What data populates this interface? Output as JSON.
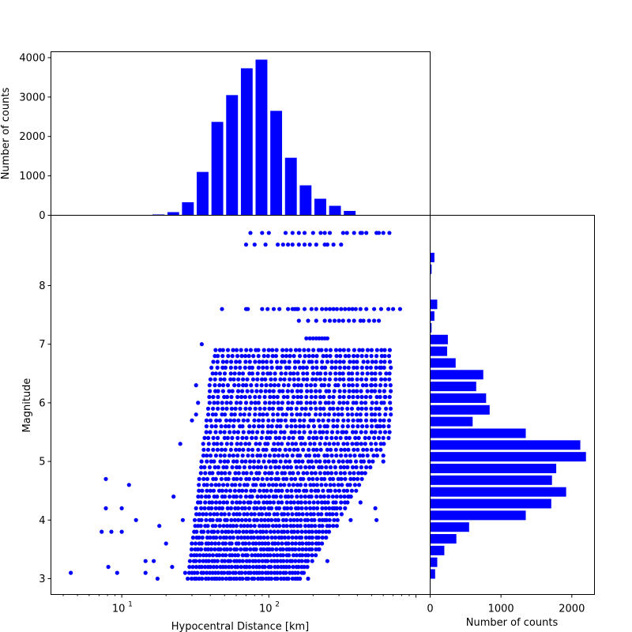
{
  "chart_data": [
    {
      "type": "bar",
      "role": "marginal-top-histogram",
      "ylabel": "Number of counts",
      "xscale": "log",
      "xlim": [
        3.3,
        1250
      ],
      "ylim": [
        0,
        4150
      ],
      "yticks": [
        0,
        1000,
        2000,
        3000,
        4000
      ],
      "color": "#0000ff",
      "bins": [
        {
          "lo": 15.8,
          "hi": 20.0,
          "count": 20
        },
        {
          "lo": 20.0,
          "hi": 25.1,
          "count": 80
        },
        {
          "lo": 25.1,
          "hi": 31.6,
          "count": 330
        },
        {
          "lo": 31.6,
          "hi": 39.8,
          "count": 1100
        },
        {
          "lo": 39.8,
          "hi": 50.1,
          "count": 2370
        },
        {
          "lo": 50.1,
          "hi": 63.1,
          "count": 3050
        },
        {
          "lo": 63.1,
          "hi": 79.4,
          "count": 3730
        },
        {
          "lo": 79.4,
          "hi": 100.0,
          "count": 3950
        },
        {
          "lo": 100.0,
          "hi": 125.9,
          "count": 2650
        },
        {
          "lo": 125.9,
          "hi": 158.5,
          "count": 1460
        },
        {
          "lo": 158.5,
          "hi": 199.5,
          "count": 760
        },
        {
          "lo": 199.5,
          "hi": 251.2,
          "count": 420
        },
        {
          "lo": 251.2,
          "hi": 316.2,
          "count": 240
        },
        {
          "lo": 316.2,
          "hi": 398.1,
          "count": 110
        }
      ]
    },
    {
      "type": "scatter",
      "role": "main",
      "xlabel": "Hypocentral Distance [km]",
      "ylabel": "Magnitude",
      "xscale": "log",
      "xlim": [
        3.3,
        1250
      ],
      "ylim": [
        2.73,
        9.2
      ],
      "xticks": [
        {
          "value": 10,
          "label": "10",
          "sup": "1"
        },
        {
          "value": 100,
          "label": "10",
          "sup": "2"
        }
      ],
      "yticks": [
        3,
        4,
        5,
        6,
        7,
        8
      ],
      "color": "#0000ff",
      "dense_band": {
        "mag_min": 3.0,
        "mag_max": 6.9,
        "mag_step": 0.1,
        "dist_lo_at_min": 28,
        "dist_lo_at_max": 42,
        "dist_hi_at_min": 170,
        "dist_hi_at_max": 700
      },
      "points": [
        [
          4.5,
          3.1
        ],
        [
          8.1,
          3.2
        ],
        [
          7.8,
          4.7
        ],
        [
          7.8,
          4.2
        ],
        [
          8.5,
          3.8
        ],
        [
          7.3,
          3.8
        ],
        [
          9.3,
          3.1
        ],
        [
          10.0,
          3.8
        ],
        [
          10.0,
          4.2
        ],
        [
          11.2,
          4.6
        ],
        [
          12.5,
          4.0
        ],
        [
          14.5,
          3.1
        ],
        [
          16.5,
          3.3
        ],
        [
          17.5,
          3.0
        ],
        [
          18.0,
          3.9
        ],
        [
          14.5,
          3.3
        ],
        [
          20.0,
          3.6
        ],
        [
          22.5,
          4.4
        ],
        [
          25.0,
          5.3
        ],
        [
          26.0,
          4.0
        ],
        [
          27.0,
          3.1
        ],
        [
          22.0,
          3.2
        ],
        [
          30.0,
          5.7
        ],
        [
          32.0,
          6.3
        ],
        [
          35.0,
          7.0
        ],
        [
          32.0,
          5.8
        ],
        [
          33.0,
          6.0
        ],
        [
          240,
          4.0
        ],
        [
          280,
          4.2
        ],
        [
          290,
          3.9
        ],
        [
          250,
          3.3
        ],
        [
          220,
          3.5
        ],
        [
          185,
          3.0
        ],
        [
          360,
          4.0
        ],
        [
          350,
          4.4
        ],
        [
          420,
          4.3
        ],
        [
          540,
          4.0
        ],
        [
          530,
          4.2
        ],
        [
          600,
          5.1
        ],
        [
          550,
          5.6
        ],
        [
          600,
          5.0
        ],
        [
          320,
          5.5
        ],
        [
          400,
          5.3
        ],
        [
          500,
          6.3
        ],
        [
          580,
          6.6
        ],
        [
          620,
          6.1
        ]
      ],
      "strong_rows": [
        {
          "mag": 8.9,
          "dist": [
            75,
            90,
            100,
            130,
            145,
            160,
            175,
            200,
            225,
            240,
            260,
            320,
            340,
            380,
            420,
            430,
            460,
            540,
            560,
            600,
            660
          ]
        },
        {
          "mag": 8.7,
          "dist": [
            70,
            80,
            95,
            115,
            125,
            135,
            145,
            160,
            175,
            190,
            210,
            240,
            250,
            275,
            310
          ]
        },
        {
          "mag": 7.6,
          "dist": [
            48,
            70,
            72,
            90,
            98,
            108,
            118,
            135,
            145,
            150,
            155,
            158,
            175,
            195,
            210,
            230,
            245,
            260,
            275,
            290,
            310,
            330,
            350,
            370,
            390,
            420,
            460,
            520,
            580,
            650,
            700,
            780
          ]
        },
        {
          "mag": 7.4,
          "dist": [
            160,
            185,
            210,
            240,
            260,
            280,
            300,
            320,
            350,
            380,
            420,
            440,
            480,
            520,
            560
          ]
        },
        {
          "mag": 7.1,
          "dist": [
            180,
            190,
            200,
            210,
            220,
            230,
            240,
            250
          ]
        }
      ]
    },
    {
      "type": "bar",
      "orientation": "horizontal",
      "role": "marginal-right-histogram",
      "xlabel": "Number of counts",
      "xlim": [
        0,
        2320
      ],
      "xticks": [
        0,
        1000,
        2000
      ],
      "ylim": [
        2.73,
        9.2
      ],
      "color": "#0000ff",
      "bins": [
        {
          "mag": 3.08,
          "count": 70
        },
        {
          "mag": 3.28,
          "count": 100
        },
        {
          "mag": 3.48,
          "count": 200
        },
        {
          "mag": 3.68,
          "count": 370
        },
        {
          "mag": 3.88,
          "count": 550
        },
        {
          "mag": 4.08,
          "count": 1350
        },
        {
          "mag": 4.28,
          "count": 1710
        },
        {
          "mag": 4.48,
          "count": 1920
        },
        {
          "mag": 4.68,
          "count": 1720
        },
        {
          "mag": 4.88,
          "count": 1780
        },
        {
          "mag": 5.08,
          "count": 2200
        },
        {
          "mag": 5.28,
          "count": 2120
        },
        {
          "mag": 5.48,
          "count": 1350
        },
        {
          "mag": 5.68,
          "count": 600
        },
        {
          "mag": 5.88,
          "count": 840
        },
        {
          "mag": 6.08,
          "count": 790
        },
        {
          "mag": 6.28,
          "count": 650
        },
        {
          "mag": 6.48,
          "count": 750
        },
        {
          "mag": 6.68,
          "count": 360
        },
        {
          "mag": 6.88,
          "count": 240
        },
        {
          "mag": 7.08,
          "count": 250
        },
        {
          "mag": 7.28,
          "count": 20
        },
        {
          "mag": 7.48,
          "count": 60
        },
        {
          "mag": 7.68,
          "count": 100
        },
        {
          "mag": 8.28,
          "count": 20
        },
        {
          "mag": 8.48,
          "count": 60
        }
      ]
    }
  ]
}
